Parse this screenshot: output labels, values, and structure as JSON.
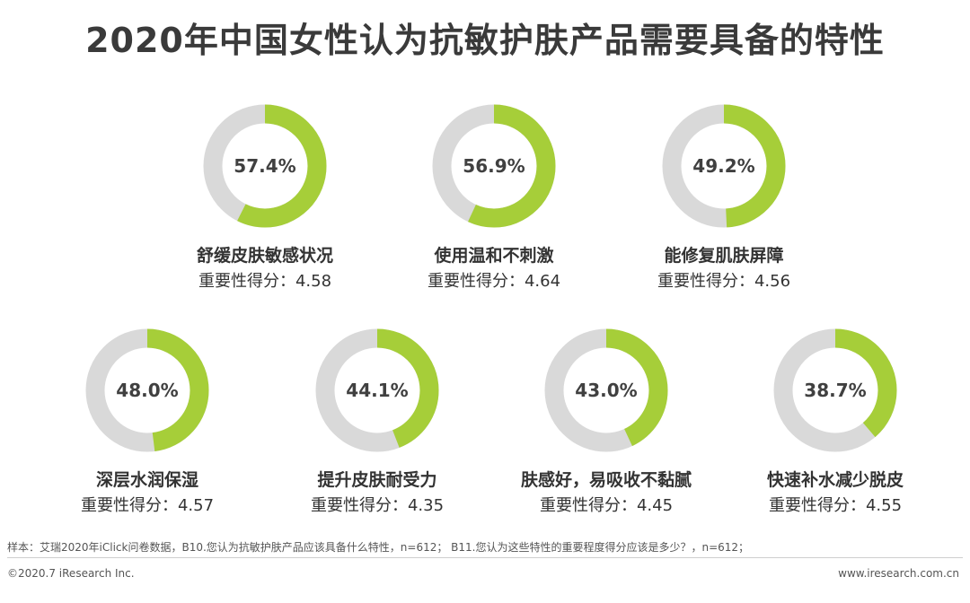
{
  "title": "2020年中国女性认为抗敏护肤产品需要具备的特性",
  "colors": {
    "accent": "#a6ce39",
    "remainder": "#d9d9d9",
    "text": "#333333"
  },
  "score_prefix": "重要性得分：",
  "chart_data": {
    "type": "pie",
    "variant": "donut",
    "items": [
      {
        "label": "舒缓皮肤敏感状况",
        "percent": 57.4,
        "percent_label": "57.4%",
        "score": "4.58"
      },
      {
        "label": "使用温和不刺激",
        "percent": 56.9,
        "percent_label": "56.9%",
        "score": "4.64"
      },
      {
        "label": "能修复肌肤屏障",
        "percent": 49.2,
        "percent_label": "49.2%",
        "score": "4.56"
      },
      {
        "label": "深层水润保湿",
        "percent": 48.0,
        "percent_label": "48.0%",
        "score": "4.57"
      },
      {
        "label": "提升皮肤耐受力",
        "percent": 44.1,
        "percent_label": "44.1%",
        "score": "4.35"
      },
      {
        "label": "肤感好，易吸收不黏腻",
        "percent": 43.0,
        "percent_label": "43.0%",
        "score": "4.45"
      },
      {
        "label": "快速补水减少脱皮",
        "percent": 38.7,
        "percent_label": "38.7%",
        "score": "4.55"
      }
    ]
  },
  "footer": {
    "note": "样本：艾瑞2020年iClick问卷数据，B10.您认为抗敏护肤产品应该具备什么特性，n=612；  B11.您认为这些特性的重要程度得分应该是多少？，n=612；",
    "copyright": "©2020.7 iResearch Inc.",
    "website": "www.iresearch.com.cn"
  }
}
